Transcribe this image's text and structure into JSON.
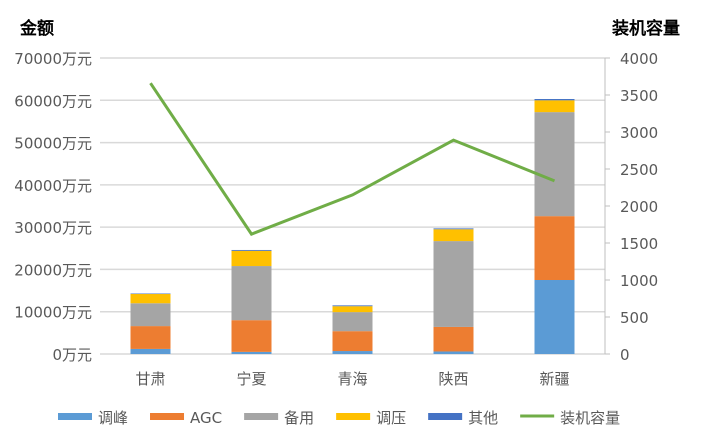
{
  "chart_data": {
    "type": "bar",
    "left_title": "金额",
    "right_title": "装机容量",
    "categories": [
      "甘肃",
      "宁夏",
      "青海",
      "陕西",
      "新疆"
    ],
    "left_ticks": [
      "0万元",
      "10000万元",
      "20000万元",
      "30000万元",
      "40000万元",
      "50000万元",
      "60000万元",
      "70000万元"
    ],
    "right_ticks": [
      "0",
      "500",
      "1000",
      "1500",
      "2000",
      "2500",
      "3000",
      "3500",
      "4000"
    ],
    "ylim_left": [
      0,
      70000
    ],
    "ylim_right": [
      0,
      4000
    ],
    "series": [
      {
        "name": "调峰",
        "color": "#5B9BD5",
        "values": [
          1200,
          500,
          700,
          600,
          17500
        ]
      },
      {
        "name": "AGC",
        "color": "#ED7D31",
        "values": [
          5400,
          7500,
          4700,
          5800,
          15100
        ]
      },
      {
        "name": "备用",
        "color": "#A5A5A5",
        "values": [
          5400,
          12800,
          4500,
          20300,
          24600
        ]
      },
      {
        "name": "调压",
        "color": "#FFC000",
        "values": [
          2200,
          3600,
          1400,
          2800,
          2800
        ]
      },
      {
        "name": "其他",
        "color": "#4472C4",
        "values": [
          100,
          200,
          200,
          200,
          300
        ]
      }
    ],
    "line": {
      "name": "装机容量",
      "color": "#70AD47",
      "values": [
        3660,
        1620,
        2150,
        2890,
        2340
      ]
    },
    "grid": true,
    "legend": "bottom"
  }
}
